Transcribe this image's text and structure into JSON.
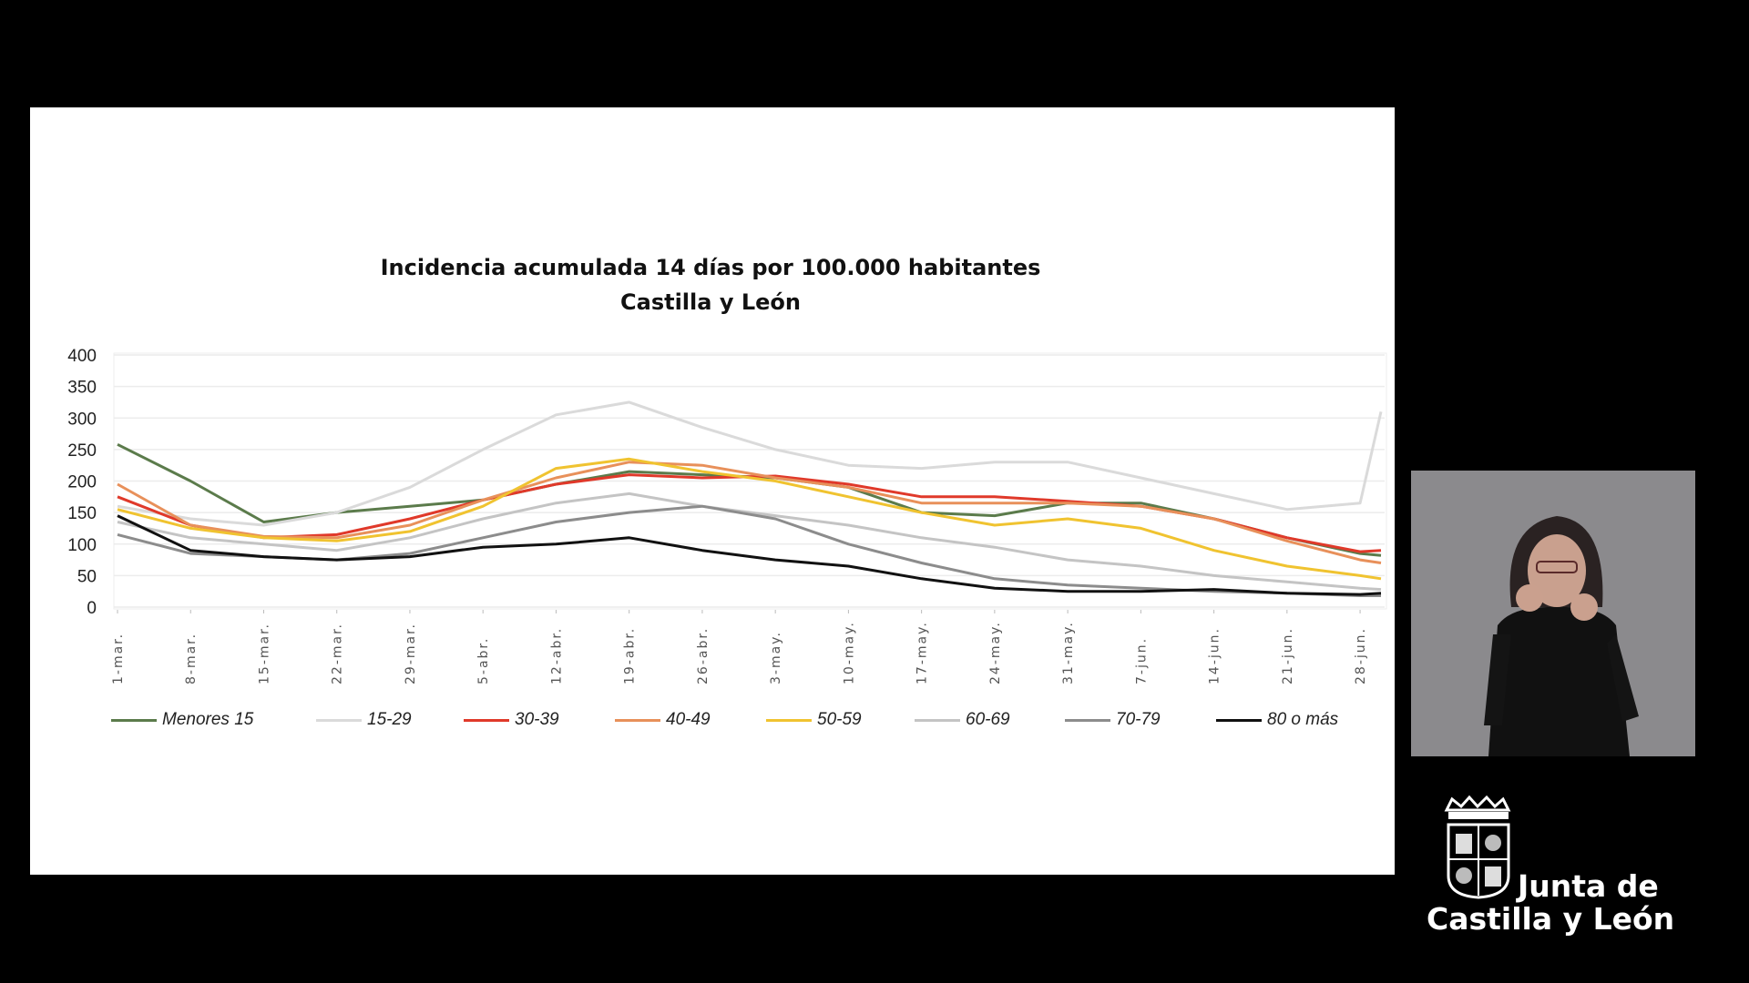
{
  "chart_data": {
    "type": "line",
    "title": "Incidencia acumulada 14 días por 100.000 habitantes",
    "subtitle": "Castilla y León",
    "xlabel": "",
    "ylabel": "",
    "ylim": [
      0,
      400
    ],
    "yticks": [
      "0",
      "50",
      "100",
      "150",
      "200",
      "250",
      "300",
      "350",
      "400"
    ],
    "ytick_values": [
      0,
      50,
      100,
      150,
      200,
      250,
      300,
      350,
      400
    ],
    "x_days": [
      0,
      7,
      14,
      21,
      28,
      35,
      42,
      49,
      56,
      63,
      70,
      77,
      84,
      91,
      98,
      105,
      112,
      119,
      121
    ],
    "xlim_days": [
      0,
      121
    ],
    "xticks": [
      "1-mar.",
      "8-mar.",
      "15-mar.",
      "22-mar.",
      "29-mar.",
      "5-abr.",
      "12-abr.",
      "19-abr.",
      "26-abr.",
      "3-may.",
      "10-may.",
      "17-may.",
      "24-may.",
      "31-may.",
      "7-jun.",
      "14-jun.",
      "21-jun.",
      "28-jun."
    ],
    "xtick_days": [
      0,
      7,
      14,
      21,
      28,
      35,
      42,
      49,
      56,
      63,
      70,
      77,
      84,
      91,
      98,
      105,
      112,
      119
    ],
    "grid": true,
    "legend_position": "bottom",
    "series": [
      {
        "name": "Menores 15",
        "color": "#5b7b4b",
        "values": [
          258,
          200,
          135,
          150,
          160,
          170,
          195,
          215,
          210,
          205,
          190,
          150,
          145,
          165,
          165,
          140,
          110,
          85,
          82
        ]
      },
      {
        "name": "15-29",
        "color": "#dadada",
        "values": [
          160,
          140,
          130,
          150,
          190,
          250,
          305,
          325,
          285,
          250,
          225,
          220,
          230,
          230,
          205,
          180,
          155,
          165,
          310
        ]
      },
      {
        "name": "30-39",
        "color": "#e0392a",
        "values": [
          175,
          130,
          110,
          115,
          140,
          170,
          195,
          210,
          205,
          208,
          195,
          175,
          175,
          168,
          160,
          140,
          110,
          88,
          90
        ]
      },
      {
        "name": "40-49",
        "color": "#e8905a",
        "values": [
          195,
          130,
          112,
          110,
          130,
          170,
          205,
          230,
          225,
          205,
          190,
          165,
          165,
          165,
          160,
          140,
          105,
          75,
          70
        ]
      },
      {
        "name": "50-59",
        "color": "#f0c330",
        "values": [
          155,
          125,
          110,
          105,
          120,
          160,
          220,
          235,
          215,
          200,
          175,
          150,
          130,
          140,
          125,
          90,
          65,
          50,
          45
        ]
      },
      {
        "name": "60-69",
        "color": "#c4c4c4",
        "values": [
          135,
          110,
          100,
          90,
          110,
          140,
          165,
          180,
          160,
          145,
          130,
          110,
          95,
          75,
          65,
          50,
          40,
          30,
          28
        ]
      },
      {
        "name": "70-79",
        "color": "#8c8c8c",
        "values": [
          115,
          85,
          80,
          75,
          85,
          110,
          135,
          150,
          160,
          140,
          100,
          70,
          45,
          35,
          30,
          25,
          22,
          18,
          18
        ]
      },
      {
        "name": "80 o más",
        "color": "#111111",
        "values": [
          145,
          90,
          80,
          75,
          80,
          95,
          100,
          110,
          90,
          75,
          65,
          45,
          30,
          25,
          25,
          28,
          22,
          20,
          22
        ]
      }
    ]
  },
  "logo": {
    "line1": "Junta de",
    "line2": "Castilla y León"
  }
}
